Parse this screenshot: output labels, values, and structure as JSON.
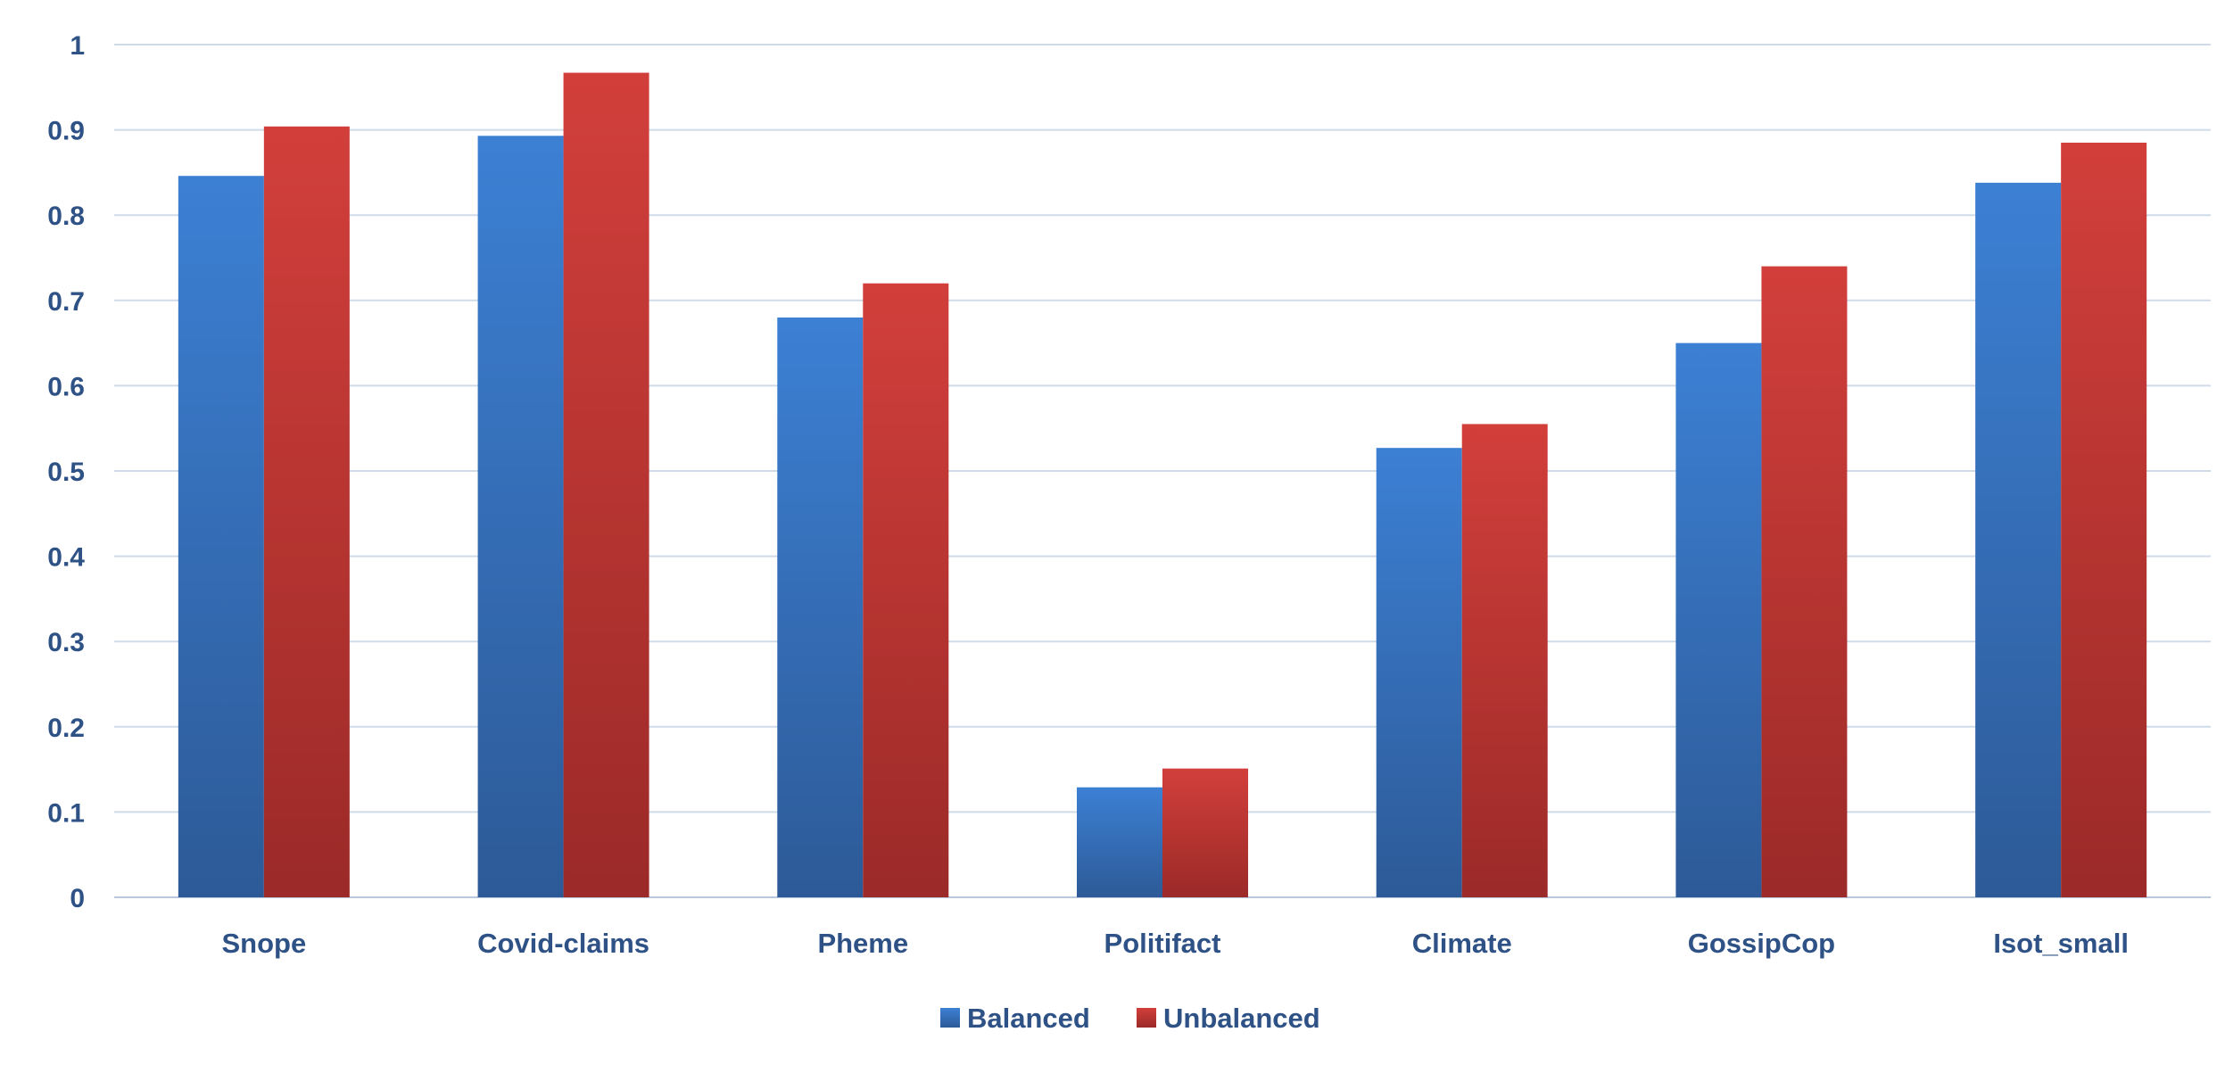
{
  "chart_data": {
    "type": "bar",
    "title": "",
    "xlabel": "",
    "ylabel": "",
    "ylim": [
      0,
      1
    ],
    "y_ticks": [
      "0",
      "0.1",
      "0.2",
      "0.3",
      "0.4",
      "0.5",
      "0.6",
      "0.7",
      "0.8",
      "0.9",
      "1"
    ],
    "grid": true,
    "legend_position": "bottom",
    "categories": [
      "Snope",
      "Covid-claims",
      "Pheme",
      "Politifact",
      "Climate",
      "GossipCop",
      "Isot_small"
    ],
    "series": [
      {
        "name": "Balanced",
        "color": "#3a7bd0",
        "values": [
          0.846,
          0.893,
          0.68,
          0.129,
          0.527,
          0.65,
          0.838
        ]
      },
      {
        "name": "Unbalanced",
        "color": "#cc3b38",
        "values": [
          0.904,
          0.967,
          0.72,
          0.151,
          0.555,
          0.74,
          0.885
        ]
      }
    ]
  }
}
